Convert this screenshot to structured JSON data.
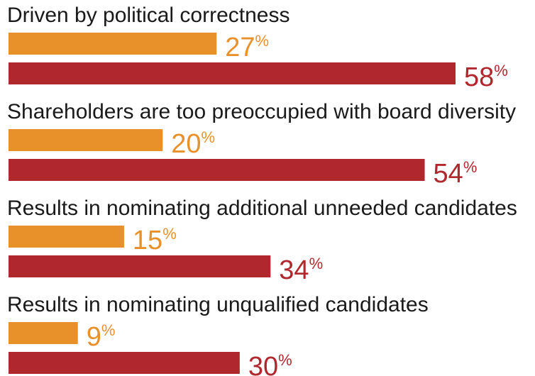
{
  "chart_data": {
    "type": "bar",
    "orientation": "horizontal",
    "categories": [
      "Driven by political correctness",
      "Shareholders are too preoccupied with board diversity",
      "Results in nominating additional unneeded candidates",
      "Results in nominating unqualified candidates"
    ],
    "series": [
      {
        "values": [
          27,
          20,
          15,
          9
        ],
        "color": "#e8912b"
      },
      {
        "values": [
          58,
          54,
          34,
          30
        ],
        "color": "#b0282e"
      }
    ],
    "value_suffix": "%",
    "xlim": [
      0,
      58
    ],
    "grid": false,
    "legend": "none"
  }
}
